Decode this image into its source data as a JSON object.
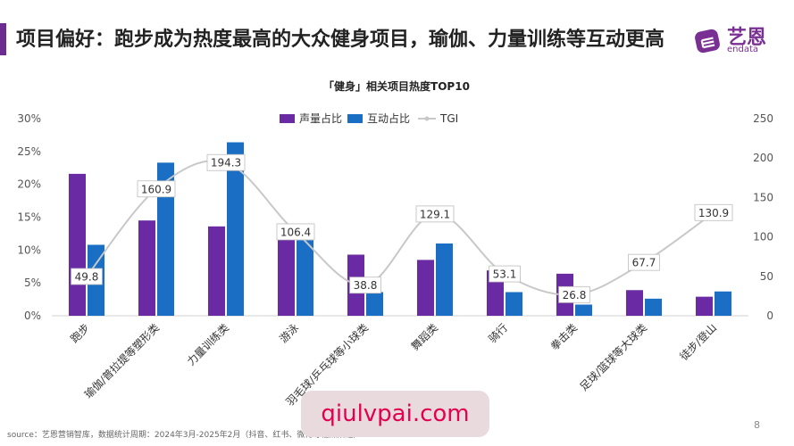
{
  "header": {
    "title": "项目偏好：跑步成为热度最高的大众健身项目，瑜伽、力量训练等互动更高"
  },
  "logo": {
    "name": "艺恩",
    "sub": "endata"
  },
  "footer": {
    "source": "source：艺恩营销智库，数据统计周期：2024年3月-2025年2月（抖音、红书、微博等社媒渠道）",
    "page": "8"
  },
  "watermark": {
    "text": "qiulvpai.com"
  },
  "colors": {
    "voice": "#6a2aa3",
    "interaction": "#1a6fc4",
    "tgi": "#c8c8c8",
    "accent": "#6a2c91"
  },
  "chart_data": {
    "type": "bar",
    "title": "「健身」相关项目热度TOP10",
    "categories": [
      "跑步",
      "瑜伽/普拉提等塑形类",
      "力量训练类",
      "游泳",
      "羽毛球/乒乓球等小球类",
      "舞蹈类",
      "骑行",
      "拳击类",
      "足球/篮球等大球类",
      "徒步/登山"
    ],
    "series": [
      {
        "name": "声量占比",
        "type": "bar",
        "axis": "left",
        "values": [
          21.6,
          14.5,
          13.6,
          11.6,
          9.3,
          8.5,
          6.9,
          6.4,
          3.9,
          2.9
        ]
      },
      {
        "name": "互动占比",
        "type": "bar",
        "axis": "left",
        "values": [
          10.8,
          23.3,
          26.4,
          11.5,
          3.6,
          11.0,
          3.6,
          1.7,
          2.6,
          3.7
        ]
      },
      {
        "name": "TGI",
        "type": "line",
        "axis": "right",
        "values": [
          49.8,
          160.9,
          194.3,
          106.4,
          38.8,
          129.1,
          53.1,
          26.8,
          67.7,
          130.9
        ],
        "labels": [
          "49.8",
          "160.9",
          "194.3",
          "106.4",
          "38.8",
          "129.1",
          "53.1",
          "26.8",
          "67.7",
          "130.9"
        ]
      }
    ],
    "y_left": {
      "min": 0,
      "max": 30,
      "ticks": [
        "0%",
        "5%",
        "10%",
        "15%",
        "20%",
        "25%",
        "30%"
      ]
    },
    "y_right": {
      "min": 0,
      "max": 250,
      "ticks": [
        "0",
        "50",
        "100",
        "150",
        "200",
        "250"
      ]
    },
    "legend": {
      "position": "top-center",
      "items": [
        "声量占比",
        "互动占比",
        "TGI"
      ]
    },
    "grid": false
  }
}
